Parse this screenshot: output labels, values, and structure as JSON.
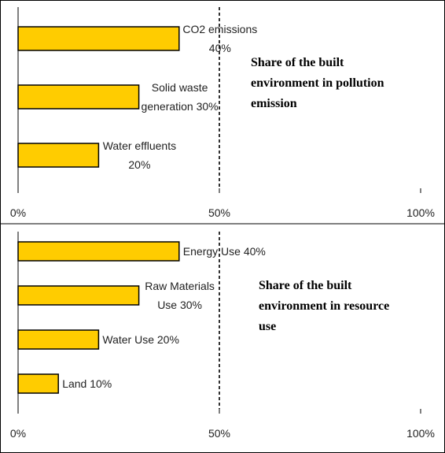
{
  "chart_data": [
    {
      "type": "bar",
      "orientation": "horizontal",
      "title_lines": [
        "Share of the built",
        "environment in pollution",
        "emission"
      ],
      "categories": [
        "CO2 emissions",
        "Solid waste generation",
        "Water effluents"
      ],
      "values": [
        40,
        30,
        20
      ],
      "bar_label_lines": [
        [
          "CO2 emissions",
          "40%"
        ],
        [
          "Solid waste",
          "generation 30%"
        ],
        [
          "Water effluents",
          "20%"
        ]
      ],
      "xlim": [
        0,
        100
      ],
      "xticks": [
        0,
        50,
        100
      ],
      "xtick_labels": [
        "0%",
        "50%",
        "100%"
      ],
      "reference_line": 50,
      "bar_color": "#FFCC00"
    },
    {
      "type": "bar",
      "orientation": "horizontal",
      "title_lines": [
        "Share of the built",
        "environment in resource",
        "use"
      ],
      "categories": [
        "Energy Use",
        "Raw Materials Use",
        "Water Use",
        "Land"
      ],
      "values": [
        40,
        30,
        20,
        10
      ],
      "bar_label_lines": [
        [
          "Energy Use 40%"
        ],
        [
          "Raw Materials",
          "Use 30%"
        ],
        [
          "Water Use 20%"
        ],
        [
          "Land 10%"
        ]
      ],
      "xlim": [
        0,
        100
      ],
      "xticks": [
        0,
        50,
        100
      ],
      "xtick_labels": [
        "0%",
        "50%",
        "100%"
      ],
      "reference_line": 50,
      "bar_color": "#FFCC00"
    }
  ]
}
